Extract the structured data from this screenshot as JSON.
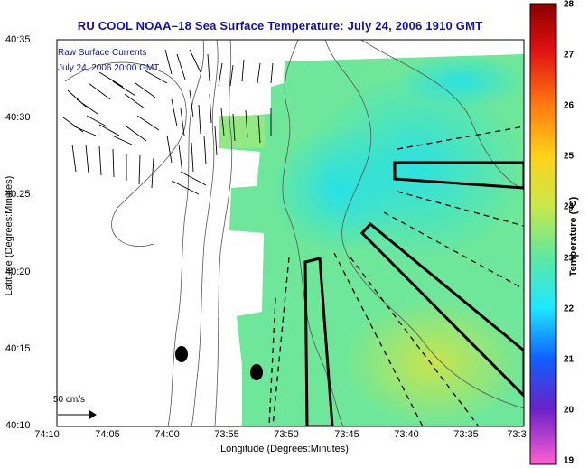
{
  "title": "RU COOL  NOAA–18  Sea Surface Temperature:  July 24, 2006 1910 GMT",
  "overlay_lines": [
    "Raw Surface Currents",
    "July 24, 2006 20:00 GMT"
  ],
  "x_axis": {
    "label": "Longitude (Degrees:Minutes)",
    "ticks": [
      "74:10",
      "74:05",
      "74:00",
      "73:55",
      "73:50",
      "73:45",
      "73:40",
      "73:35",
      "73:3"
    ]
  },
  "y_axis": {
    "label": "Latitude (Degrees:Minutes)",
    "ticks": [
      "40:35",
      "40:30",
      "40:25",
      "40:20",
      "40:15",
      "40:10"
    ]
  },
  "scale_bar": {
    "label": "50 cm/s"
  },
  "colorbar": {
    "title": "Temperature (°C)",
    "ticks": [
      "28",
      "27",
      "26",
      "25",
      "24",
      "23",
      "22",
      "21",
      "20",
      "19"
    ],
    "range": [
      19,
      28
    ]
  },
  "colors": {
    "title": "#1010a8",
    "land": "#ffffff",
    "sst_cool": "#22e6e6",
    "sst_mid": "#7ae87e",
    "sst_warm": "#c8e84a"
  }
}
